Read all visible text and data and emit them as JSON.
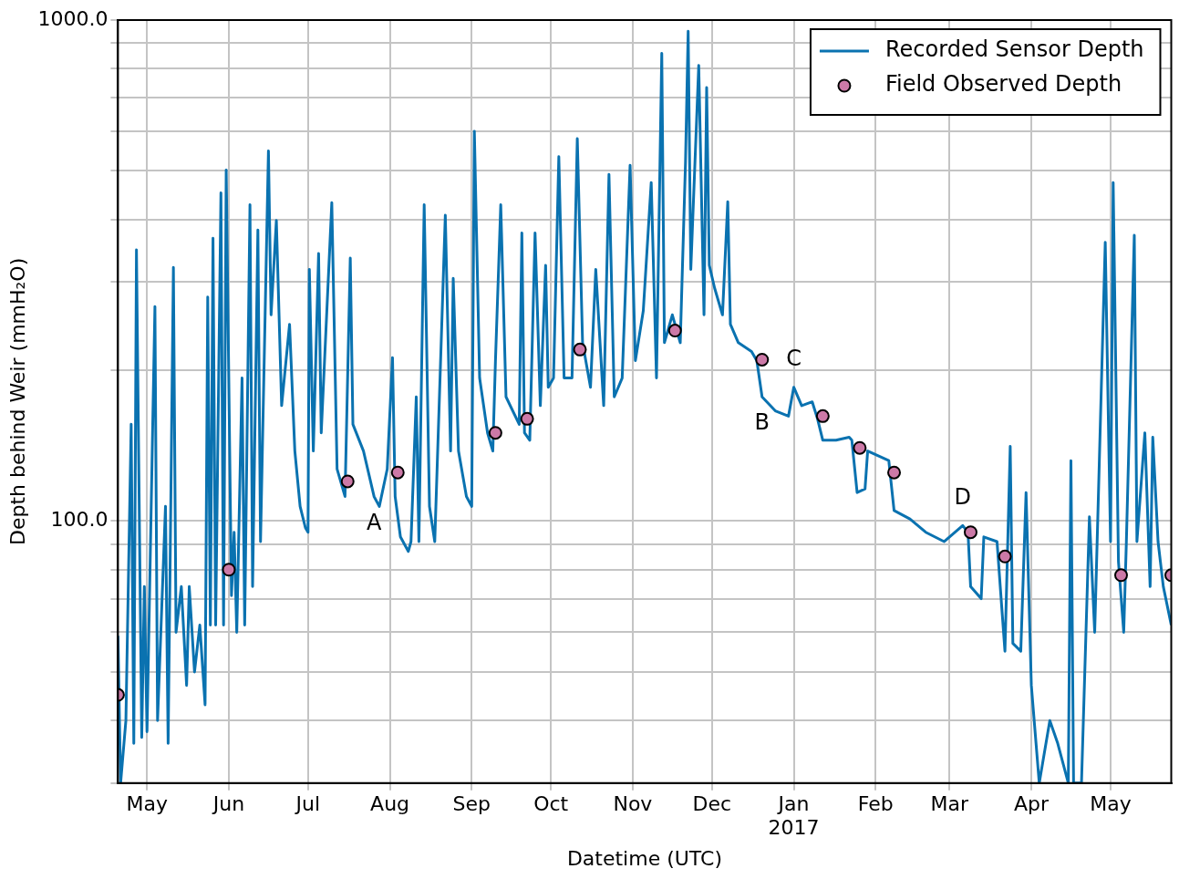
{
  "chart_data": {
    "type": "line",
    "xlabel": "Datetime (UTC)",
    "ylabel": "Depth behind Weir (mmH₂O)",
    "log": "y",
    "grid": true,
    "legend": "top right",
    "xlim": [
      "2016-04-20",
      "2017-05-24"
    ],
    "xticks": [
      {
        "value": "2016-05-01",
        "label": "May"
      },
      {
        "value": "2016-06-01",
        "label": "Jun"
      },
      {
        "value": "2016-07-01",
        "label": "Jul"
      },
      {
        "value": "2016-08-01",
        "label": "Aug"
      },
      {
        "value": "2016-09-01",
        "label": "Sep"
      },
      {
        "value": "2016-10-01",
        "label": "Oct"
      },
      {
        "value": "2016-11-01",
        "label": "Nov"
      },
      {
        "value": "2016-12-01",
        "label": "Dec"
      },
      {
        "value": "2017-01-01",
        "label": "Jan\n2017"
      },
      {
        "value": "2017-02-01",
        "label": "Feb"
      },
      {
        "value": "2017-03-01",
        "label": "Mar"
      },
      {
        "value": "2017-04-01",
        "label": "Apr"
      },
      {
        "value": "2017-05-01",
        "label": "May"
      }
    ],
    "ylim": [
      30,
      1000
    ],
    "yticks": [
      {
        "value": 30,
        "label": null
      },
      {
        "value": 40,
        "label": null
      },
      {
        "value": 50,
        "label": null
      },
      {
        "value": 60,
        "label": null
      },
      {
        "value": 70,
        "label": null
      },
      {
        "value": 80,
        "label": null
      },
      {
        "value": 90,
        "label": null
      },
      {
        "value": 100,
        "label": "100.0"
      },
      {
        "value": 200,
        "label": null
      },
      {
        "value": 300,
        "label": null
      },
      {
        "value": 400,
        "label": null
      },
      {
        "value": 500,
        "label": null
      },
      {
        "value": 600,
        "label": null
      },
      {
        "value": 700,
        "label": null
      },
      {
        "value": 800,
        "label": null
      },
      {
        "value": 900,
        "label": null
      },
      {
        "value": 1000,
        "label": "1000.0"
      }
    ],
    "annotations": [
      {
        "text": "A",
        "x": "2016-07-26",
        "y": 112
      },
      {
        "text": "B",
        "x": "2016-12-20",
        "y": 177
      },
      {
        "text": "C",
        "x": "2017-01-01",
        "y": 185
      },
      {
        "text": "D",
        "x": "2017-03-06",
        "y": 98
      }
    ],
    "series": [
      {
        "name": "Recorded Sensor Depth",
        "color": "#0a72b0",
        "line_style": "solid",
        "marker": "none",
        "x": [
          "2016-04-20",
          "2016-04-21",
          "2016-04-23",
          "2016-04-25",
          "2016-04-26",
          "2016-04-27",
          "2016-04-29",
          "2016-04-30",
          "2016-05-01",
          "2016-05-04",
          "2016-05-05",
          "2016-05-08",
          "2016-05-09",
          "2016-05-11",
          "2016-05-12",
          "2016-05-14",
          "2016-05-16",
          "2016-05-17",
          "2016-05-19",
          "2016-05-21",
          "2016-05-23",
          "2016-05-24",
          "2016-05-25",
          "2016-05-26",
          "2016-05-27",
          "2016-05-29",
          "2016-05-30",
          "2016-05-31",
          "2016-06-02",
          "2016-06-03",
          "2016-06-04",
          "2016-06-06",
          "2016-06-07",
          "2016-06-09",
          "2016-06-10",
          "2016-06-12",
          "2016-06-13",
          "2016-06-16",
          "2016-06-17",
          "2016-06-19",
          "2016-06-21",
          "2016-06-24",
          "2016-06-26",
          "2016-06-28",
          "2016-06-30",
          "2016-07-01",
          "2016-07-01T12:00",
          "2016-07-03",
          "2016-07-05",
          "2016-07-06",
          "2016-07-10",
          "2016-07-12",
          "2016-07-15",
          "2016-07-17",
          "2016-07-18",
          "2016-07-22",
          "2016-07-26",
          "2016-07-28",
          "2016-07-31",
          "2016-08-02",
          "2016-08-03",
          "2016-08-05",
          "2016-08-08",
          "2016-08-09",
          "2016-08-11",
          "2016-08-12",
          "2016-08-14",
          "2016-08-16",
          "2016-08-18",
          "2016-08-22",
          "2016-08-24",
          "2016-08-25",
          "2016-08-27",
          "2016-08-30",
          "2016-09-01",
          "2016-09-02",
          "2016-09-04",
          "2016-09-07",
          "2016-09-09",
          "2016-09-10",
          "2016-09-12",
          "2016-09-14",
          "2016-09-19",
          "2016-09-20",
          "2016-09-21",
          "2016-09-23",
          "2016-09-25",
          "2016-09-27",
          "2016-09-29",
          "2016-09-30",
          "2016-10-02",
          "2016-10-04",
          "2016-10-06",
          "2016-10-09",
          "2016-10-11",
          "2016-10-13",
          "2016-10-16",
          "2016-10-18",
          "2016-10-21",
          "2016-10-23",
          "2016-10-25",
          "2016-10-28",
          "2016-10-31",
          "2016-11-02",
          "2016-11-05",
          "2016-11-08",
          "2016-11-10",
          "2016-11-12",
          "2016-11-13",
          "2016-11-16",
          "2016-11-19",
          "2016-11-21",
          "2016-11-22",
          "2016-11-23",
          "2016-11-26",
          "2016-11-28",
          "2016-11-29",
          "2016-11-30",
          "2016-12-02",
          "2016-12-05",
          "2016-12-07",
          "2016-12-08",
          "2016-12-11",
          "2016-12-16",
          "2016-12-18",
          "2016-12-20",
          "2016-12-25",
          "2016-12-30",
          "2017-01-01",
          "2017-01-04",
          "2017-01-08",
          "2017-01-10",
          "2017-01-12",
          "2017-01-17",
          "2017-01-22",
          "2017-01-23",
          "2017-01-25",
          "2017-01-28",
          "2017-01-29",
          "2017-02-06",
          "2017-02-08",
          "2017-02-14",
          "2017-02-20",
          "2017-02-27",
          "2017-03-06",
          "2017-03-08",
          "2017-03-09",
          "2017-03-13",
          "2017-03-14",
          "2017-03-19",
          "2017-03-21",
          "2017-03-22",
          "2017-03-24",
          "2017-03-25",
          "2017-03-28",
          "2017-03-30",
          "2017-04-01",
          "2017-04-04",
          "2017-04-08",
          "2017-04-11",
          "2017-04-15",
          "2017-04-16",
          "2017-04-17",
          "2017-04-20",
          "2017-04-23",
          "2017-04-25",
          "2017-04-29",
          "2017-05-01",
          "2017-05-02",
          "2017-05-04",
          "2017-05-06",
          "2017-05-07",
          "2017-05-10",
          "2017-05-11",
          "2017-05-14",
          "2017-05-16",
          "2017-05-17",
          "2017-05-19",
          "2017-05-21",
          "2017-05-24"
        ],
        "values": [
          59,
          30,
          40,
          156,
          36,
          348,
          37,
          74,
          38,
          268,
          40,
          107,
          36,
          321,
          60,
          74,
          47,
          74,
          50,
          62,
          43,
          280,
          62,
          367,
          62,
          452,
          62,
          502,
          71,
          95,
          60,
          193,
          62,
          428,
          74,
          381,
          91,
          548,
          258,
          398,
          170,
          247,
          138,
          107,
          97,
          95,
          318,
          138,
          342,
          150,
          432,
          127,
          112,
          335,
          156,
          138,
          112,
          107,
          127,
          212,
          112,
          93,
          87,
          91,
          177,
          91,
          428,
          107,
          91,
          408,
          138,
          305,
          138,
          112,
          107,
          600,
          193,
          150,
          138,
          209,
          428,
          177,
          156,
          376,
          150,
          145,
          376,
          170,
          324,
          185,
          193,
          534,
          193,
          193,
          580,
          227,
          185,
          318,
          170,
          492,
          177,
          193,
          513,
          209,
          263,
          474,
          193,
          858,
          227,
          258,
          227,
          523,
          950,
          318,
          812,
          258,
          733,
          324,
          292,
          258,
          434,
          247,
          227,
          218,
          209,
          177,
          166,
          162,
          185,
          170,
          173,
          160,
          145,
          145,
          147,
          145,
          114,
          116,
          138,
          132,
          105,
          101,
          95,
          91,
          98,
          95,
          74,
          70,
          93,
          91,
          65,
          55,
          141,
          57,
          55,
          114,
          47,
          30,
          40,
          36,
          30,
          132,
          30,
          30,
          102,
          60,
          360,
          91,
          474,
          83,
          60,
          91,
          372,
          91,
          150,
          74,
          147,
          91,
          74,
          62
        ]
      },
      {
        "name": "Field Observed Depth",
        "type": "scatter",
        "color": "#cc79a7",
        "marker": "circle",
        "x": [
          "2016-04-20",
          "2016-06-01",
          "2016-07-16",
          "2016-08-04",
          "2016-09-10",
          "2016-09-22",
          "2016-10-12",
          "2016-11-17",
          "2016-12-20",
          "2017-01-12",
          "2017-01-26",
          "2017-02-08",
          "2017-03-09",
          "2017-03-22",
          "2017-05-05",
          "2017-05-24"
        ],
        "values": [
          45,
          80,
          120,
          125,
          150,
          160,
          220,
          240,
          210,
          162,
          140,
          125,
          95,
          85,
          78,
          78
        ]
      }
    ]
  }
}
